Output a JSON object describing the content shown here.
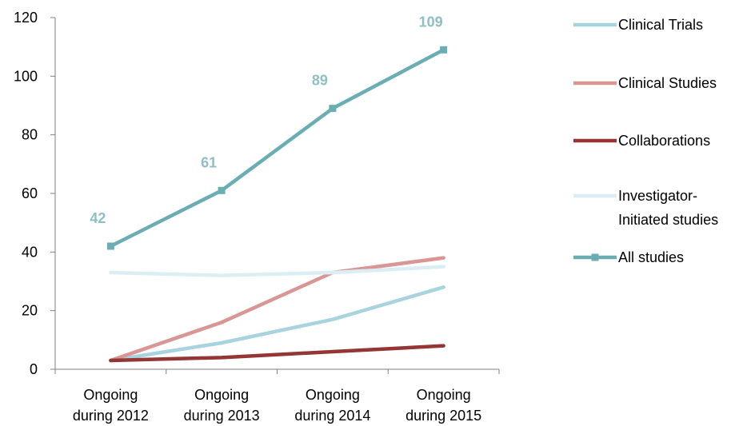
{
  "chart_data": {
    "type": "line",
    "categories": [
      [
        "Ongoing",
        "during 2012"
      ],
      [
        "Ongoing",
        "during 2013"
      ],
      [
        "Ongoing",
        "during 2014"
      ],
      [
        "Ongoing",
        "during 2015"
      ]
    ],
    "y_ticks": [
      "0",
      "20",
      "40",
      "60",
      "80",
      "100",
      "120"
    ],
    "ylim": [
      0,
      120
    ],
    "grid": false,
    "legend_position": "right",
    "series": [
      {
        "name": "Clinical Trials",
        "values": [
          3,
          9,
          17,
          28
        ],
        "color": "#a9d3df",
        "marker": "none"
      },
      {
        "name": "Clinical Studies",
        "values": [
          3,
          16,
          33,
          38
        ],
        "color": "#d99694",
        "marker": "none"
      },
      {
        "name": "Collaborations",
        "values": [
          3,
          4,
          6,
          8
        ],
        "color": "#943634",
        "marker": "none"
      },
      {
        "name": "Investigator-Initiated studies",
        "legend_lines": [
          "Investigator-",
          "Initiated studies"
        ],
        "values": [
          33,
          32,
          33,
          35
        ],
        "color": "#dbeef3",
        "marker": "none"
      },
      {
        "name": "All studies",
        "values": [
          42,
          61,
          89,
          109
        ],
        "color": "#6aaeb4",
        "marker": "square",
        "data_labels": [
          "42",
          "61",
          "89",
          "109"
        ],
        "label_color": "#8ebfc4"
      }
    ]
  }
}
